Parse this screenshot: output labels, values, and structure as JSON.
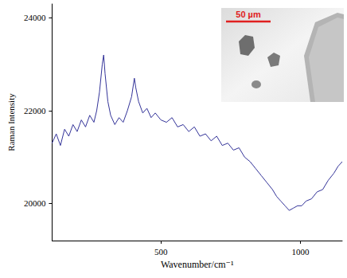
{
  "chart_data": {
    "type": "line",
    "x_label": "Wavenumber/cm⁻¹",
    "y_label": "Raman Intensity",
    "annotations": [
      "50 µm"
    ],
    "x": [
      110,
      125,
      140,
      155,
      170,
      185,
      200,
      215,
      230,
      245,
      260,
      270,
      280,
      290,
      295,
      300,
      310,
      320,
      335,
      350,
      365,
      380,
      395,
      405,
      410,
      420,
      435,
      450,
      465,
      480,
      500,
      520,
      540,
      560,
      580,
      600,
      620,
      640,
      660,
      680,
      700,
      720,
      740,
      760,
      780,
      800,
      820,
      840,
      860,
      880,
      900,
      915,
      930,
      945,
      960,
      975,
      990,
      1005,
      1020,
      1040,
      1060,
      1080,
      1100,
      1120,
      1135,
      1150
    ],
    "values": [
      21300,
      21500,
      21250,
      21600,
      21450,
      21700,
      21550,
      21800,
      21650,
      21900,
      21750,
      22000,
      22400,
      23000,
      23200,
      22800,
      22200,
      21900,
      21700,
      21850,
      21750,
      22000,
      22300,
      22700,
      22500,
      22200,
      21950,
      22050,
      21850,
      21950,
      21800,
      21750,
      21850,
      21650,
      21700,
      21550,
      21650,
      21450,
      21500,
      21350,
      21450,
      21250,
      21300,
      21150,
      21200,
      21000,
      20900,
      20750,
      20600,
      20450,
      20300,
      20150,
      20050,
      19950,
      19850,
      19900,
      19950,
      19950,
      20050,
      20100,
      20250,
      20300,
      20500,
      20650,
      20800,
      20900
    ],
    "color": "#333399",
    "marker": "none",
    "line_style": "solid",
    "xlim": [
      110,
      1150
    ],
    "xticks": [
      500,
      1000
    ],
    "ylim": [
      19200,
      24300
    ],
    "yticks": [
      20000,
      22000,
      24000
    ],
    "grid": false
  }
}
